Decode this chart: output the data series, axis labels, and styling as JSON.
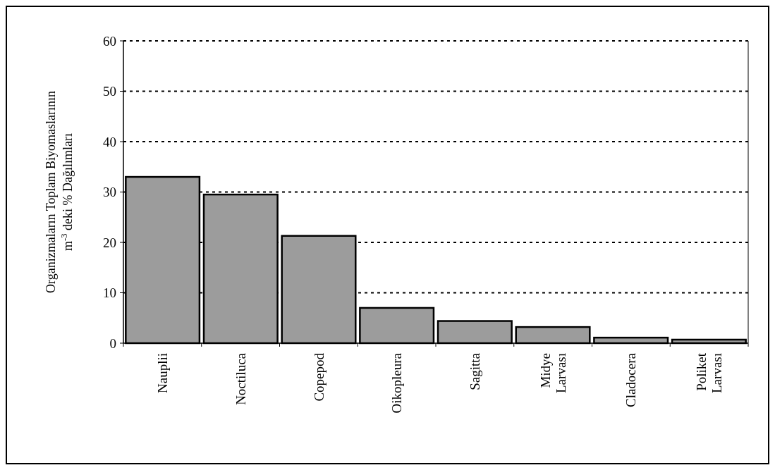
{
  "chart_data": {
    "type": "bar",
    "ylabel": "Organizmaların Toplam Biyomaslarının\nm$^{-3}$ deki % Dağılımları",
    "categories": [
      "Nauplii",
      "Noctiluca",
      "Copepod",
      "Oikopleura",
      "Sagitta",
      "Midye Larvası",
      "Cladocera",
      "Poliket Larvası"
    ],
    "values": [
      33.0,
      29.5,
      21.3,
      7.0,
      4.4,
      3.2,
      1.1,
      0.7
    ],
    "color": "#9c9c9c",
    "ylim": [
      0,
      60
    ],
    "yticks": [
      0,
      10,
      20,
      30,
      40,
      50,
      60
    ],
    "grid": "y"
  }
}
